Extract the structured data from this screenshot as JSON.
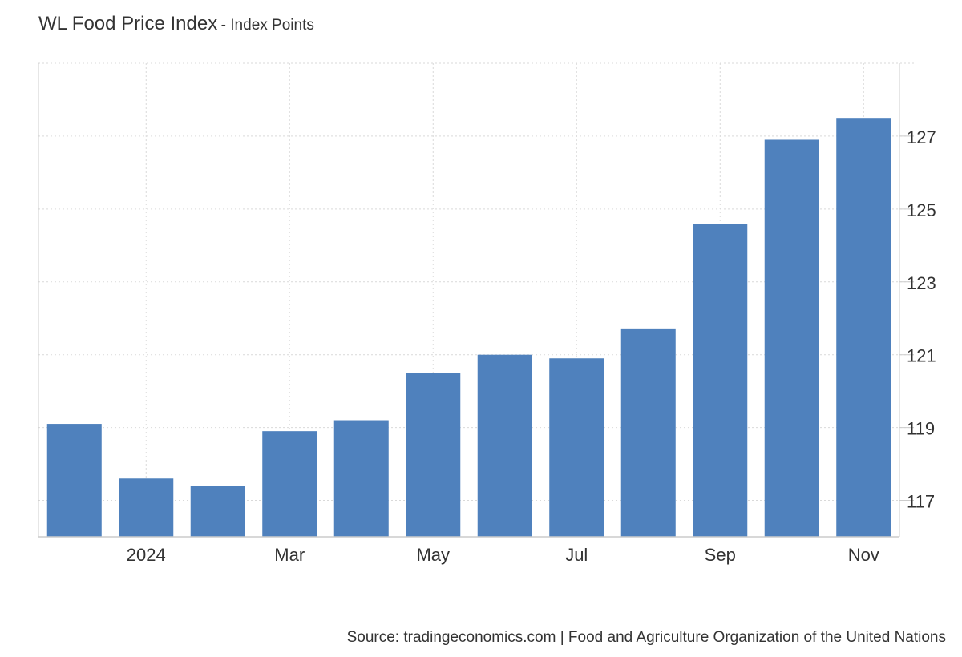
{
  "header": {
    "title": "WL Food Price Index",
    "subtitle": "- Index Points"
  },
  "footer": {
    "source": "Source: tradingeconomics.com | Food and Agriculture Organization of the United Nations"
  },
  "colors": {
    "bar": "#4f81bd",
    "grid": "#d9d9d9",
    "axis": "#cccccc",
    "text": "#333333"
  },
  "chart_data": {
    "type": "bar",
    "x": [
      "2023-12",
      "2024-01",
      "2024-02",
      "2024-03",
      "2024-04",
      "2024-05",
      "2024-06",
      "2024-07",
      "2024-08",
      "2024-09",
      "2024-10",
      "2024-11"
    ],
    "values": [
      119.1,
      117.6,
      117.4,
      118.9,
      119.2,
      120.5,
      121.0,
      120.9,
      121.7,
      124.6,
      126.9,
      127.5
    ],
    "ylim": [
      116,
      129
    ],
    "y_ticks": [
      117,
      119,
      121,
      123,
      125,
      127
    ],
    "x_tick_labels": [
      {
        "label": "2024",
        "at": "2024-01"
      },
      {
        "label": "Mar",
        "at": "2024-03"
      },
      {
        "label": "May",
        "at": "2024-05"
      },
      {
        "label": "Jul",
        "at": "2024-07"
      },
      {
        "label": "Sep",
        "at": "2024-09"
      },
      {
        "label": "Nov",
        "at": "2024-11"
      }
    ],
    "y_axis_side": "right",
    "grid": true
  }
}
